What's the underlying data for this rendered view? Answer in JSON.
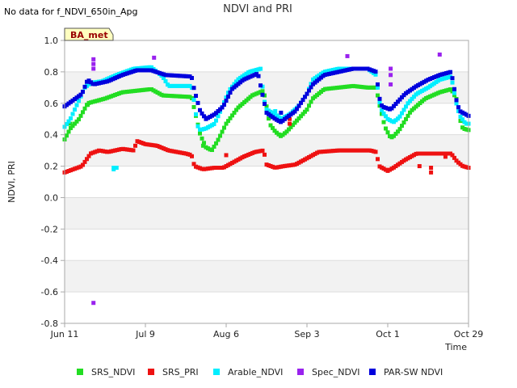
{
  "chart_data": {
    "type": "scatter",
    "title": "NDVI and PRI",
    "note": "No data for f_NDVI_650in_Apg",
    "badge": "BA_met",
    "xlabel": "Time",
    "ylabel": "NDVI, PRI",
    "xlim": [
      0,
      140
    ],
    "ylim": [
      -0.8,
      1.0
    ],
    "x_ticks": [
      {
        "value": 0,
        "label": "Jun 11"
      },
      {
        "value": 28,
        "label": "Jul 9"
      },
      {
        "value": 56,
        "label": "Aug 6"
      },
      {
        "value": 84,
        "label": "Sep 3"
      },
      {
        "value": 112,
        "label": "Oct 1"
      },
      {
        "value": 140,
        "label": "Oct 29"
      }
    ],
    "y_ticks": [
      {
        "value": -0.8,
        "label": "-0.8"
      },
      {
        "value": -0.6,
        "label": "-0.6"
      },
      {
        "value": -0.4,
        "label": "-0.4"
      },
      {
        "value": -0.2,
        "label": "-0.2"
      },
      {
        "value": 0.0,
        "label": "0.0"
      },
      {
        "value": 0.2,
        "label": "0.2"
      },
      {
        "value": 0.4,
        "label": "0.4"
      },
      {
        "value": 0.6,
        "label": "0.6"
      },
      {
        "value": 0.8,
        "label": "0.8"
      },
      {
        "value": 1.0,
        "label": "1.0"
      }
    ],
    "series": [
      {
        "name": "SRS_NDVI",
        "color": "#22dd22",
        "anchors": [
          [
            0,
            0.37
          ],
          [
            2,
            0.44
          ],
          [
            5,
            0.5
          ],
          [
            8,
            0.6
          ],
          [
            10,
            0.61
          ],
          [
            14,
            0.63
          ],
          [
            20,
            0.67
          ],
          [
            30,
            0.69
          ],
          [
            34,
            0.65
          ],
          [
            44,
            0.64
          ],
          [
            45,
            0.56
          ],
          [
            47,
            0.4
          ],
          [
            49,
            0.32
          ],
          [
            51,
            0.3
          ],
          [
            53,
            0.36
          ],
          [
            56,
            0.47
          ],
          [
            60,
            0.57
          ],
          [
            65,
            0.65
          ],
          [
            69,
            0.68
          ],
          [
            70,
            0.58
          ],
          [
            71,
            0.47
          ],
          [
            73,
            0.42
          ],
          [
            75,
            0.39
          ],
          [
            77,
            0.42
          ],
          [
            79,
            0.46
          ],
          [
            84,
            0.56
          ],
          [
            86,
            0.63
          ],
          [
            90,
            0.69
          ],
          [
            95,
            0.7
          ],
          [
            100,
            0.71
          ],
          [
            105,
            0.7
          ],
          [
            108,
            0.7
          ],
          [
            109,
            0.6
          ],
          [
            111,
            0.45
          ],
          [
            113,
            0.38
          ],
          [
            114,
            0.39
          ],
          [
            116,
            0.43
          ],
          [
            120,
            0.55
          ],
          [
            125,
            0.63
          ],
          [
            130,
            0.67
          ],
          [
            134,
            0.69
          ],
          [
            136,
            0.62
          ],
          [
            137,
            0.5
          ],
          [
            138,
            0.44
          ],
          [
            140,
            0.43
          ]
        ]
      },
      {
        "name": "SRS_PRI",
        "color": "#ee1111",
        "anchors": [
          [
            0,
            0.16
          ],
          [
            3,
            0.18
          ],
          [
            6,
            0.2
          ],
          [
            9,
            0.28
          ],
          [
            12,
            0.3
          ],
          [
            15,
            0.29
          ],
          [
            20,
            0.31
          ],
          [
            24,
            0.3
          ],
          [
            25,
            0.36
          ],
          [
            28,
            0.34
          ],
          [
            32,
            0.33
          ],
          [
            36,
            0.3
          ],
          [
            42,
            0.28
          ],
          [
            44,
            0.27
          ],
          [
            45,
            0.2
          ],
          [
            48,
            0.18
          ],
          [
            52,
            0.19
          ],
          [
            55,
            0.19
          ],
          [
            58,
            0.22
          ],
          [
            62,
            0.26
          ],
          [
            66,
            0.29
          ],
          [
            69,
            0.3
          ],
          [
            70,
            0.21
          ],
          [
            73,
            0.19
          ],
          [
            76,
            0.2
          ],
          [
            80,
            0.21
          ],
          [
            84,
            0.25
          ],
          [
            88,
            0.29
          ],
          [
            95,
            0.3
          ],
          [
            100,
            0.3
          ],
          [
            103,
            0.3
          ],
          [
            106,
            0.3
          ],
          [
            108,
            0.29
          ],
          [
            109,
            0.2
          ],
          [
            112,
            0.17
          ],
          [
            114,
            0.19
          ],
          [
            118,
            0.24
          ],
          [
            122,
            0.28
          ],
          [
            128,
            0.28
          ],
          [
            134,
            0.28
          ],
          [
            136,
            0.23
          ],
          [
            138,
            0.2
          ],
          [
            140,
            0.19
          ]
        ]
      },
      {
        "name": "Arable_NDVI",
        "color": "#00eeff",
        "anchors": [
          [
            0,
            0.45
          ],
          [
            2,
            0.5
          ],
          [
            5,
            0.62
          ],
          [
            7,
            0.7
          ],
          [
            9,
            0.73
          ],
          [
            13,
            0.74
          ],
          [
            18,
            0.78
          ],
          [
            24,
            0.82
          ],
          [
            30,
            0.83
          ],
          [
            34,
            0.77
          ],
          [
            36,
            0.71
          ],
          [
            44,
            0.71
          ],
          [
            45,
            0.6
          ],
          [
            46,
            0.46
          ],
          [
            47,
            0.43
          ],
          [
            49,
            0.44
          ],
          [
            52,
            0.47
          ],
          [
            54,
            0.55
          ],
          [
            57,
            0.68
          ],
          [
            60,
            0.75
          ],
          [
            64,
            0.8
          ],
          [
            68,
            0.82
          ],
          [
            69,
            0.63
          ],
          [
            70,
            0.56
          ],
          [
            73,
            0.53
          ],
          [
            75,
            0.5
          ],
          [
            78,
            0.53
          ],
          [
            81,
            0.58
          ],
          [
            84,
            0.66
          ],
          [
            86,
            0.75
          ],
          [
            90,
            0.8
          ],
          [
            95,
            0.82
          ],
          [
            105,
            0.82
          ],
          [
            108,
            0.78
          ],
          [
            109,
            0.62
          ],
          [
            110,
            0.55
          ],
          [
            112,
            0.5
          ],
          [
            114,
            0.48
          ],
          [
            116,
            0.51
          ],
          [
            119,
            0.6
          ],
          [
            122,
            0.66
          ],
          [
            126,
            0.7
          ],
          [
            130,
            0.75
          ],
          [
            134,
            0.77
          ],
          [
            136,
            0.58
          ],
          [
            137,
            0.52
          ],
          [
            139,
            0.47
          ],
          [
            140,
            0.47
          ]
        ]
      },
      {
        "name": "Spec_NDVI",
        "color": "#9922ee",
        "points": [
          [
            10,
            0.88
          ],
          [
            10,
            0.85
          ],
          [
            10,
            0.82
          ],
          [
            10,
            -0.67
          ],
          [
            31,
            0.89
          ],
          [
            98,
            0.9
          ],
          [
            113,
            0.82
          ],
          [
            113,
            0.78
          ],
          [
            113,
            0.72
          ],
          [
            130,
            0.91
          ]
        ]
      },
      {
        "name": "PAR-SW NDVI",
        "color": "#0000dd",
        "anchors": [
          [
            0,
            0.58
          ],
          [
            3,
            0.62
          ],
          [
            6,
            0.66
          ],
          [
            8,
            0.75
          ],
          [
            10,
            0.72
          ],
          [
            15,
            0.74
          ],
          [
            20,
            0.78
          ],
          [
            25,
            0.81
          ],
          [
            30,
            0.81
          ],
          [
            35,
            0.78
          ],
          [
            44,
            0.77
          ],
          [
            45,
            0.68
          ],
          [
            47,
            0.55
          ],
          [
            49,
            0.5
          ],
          [
            52,
            0.53
          ],
          [
            55,
            0.58
          ],
          [
            58,
            0.69
          ],
          [
            62,
            0.75
          ],
          [
            67,
            0.79
          ],
          [
            69,
            0.62
          ],
          [
            70,
            0.54
          ],
          [
            73,
            0.5
          ],
          [
            75,
            0.48
          ],
          [
            77,
            0.51
          ],
          [
            80,
            0.55
          ],
          [
            84,
            0.66
          ],
          [
            86,
            0.72
          ],
          [
            90,
            0.78
          ],
          [
            95,
            0.8
          ],
          [
            100,
            0.82
          ],
          [
            105,
            0.82
          ],
          [
            108,
            0.8
          ],
          [
            109,
            0.64
          ],
          [
            110,
            0.58
          ],
          [
            113,
            0.56
          ],
          [
            115,
            0.6
          ],
          [
            118,
            0.66
          ],
          [
            122,
            0.71
          ],
          [
            126,
            0.75
          ],
          [
            130,
            0.78
          ],
          [
            134,
            0.8
          ],
          [
            136,
            0.6
          ],
          [
            137,
            0.55
          ],
          [
            140,
            0.52
          ]
        ]
      }
    ],
    "extra_points": {
      "SRS_NDVI": [
        [
          2,
          0.47
        ],
        [
          8,
          0.59
        ],
        [
          48,
          0.33
        ]
      ],
      "SRS_PRI": [
        [
          56,
          0.27
        ],
        [
          78,
          0.5
        ],
        [
          78,
          0.47
        ],
        [
          123,
          0.2
        ],
        [
          127,
          0.16
        ],
        [
          127,
          0.19
        ],
        [
          131,
          0.28
        ],
        [
          132,
          0.26
        ]
      ],
      "Arable_NDVI": [
        [
          17,
          0.19
        ],
        [
          17,
          0.18
        ],
        [
          18,
          0.19
        ],
        [
          73,
          0.55
        ]
      ],
      "PAR-SW NDVI": [
        [
          75,
          0.54
        ]
      ]
    },
    "legend_position": "bottom",
    "grid": true
  }
}
